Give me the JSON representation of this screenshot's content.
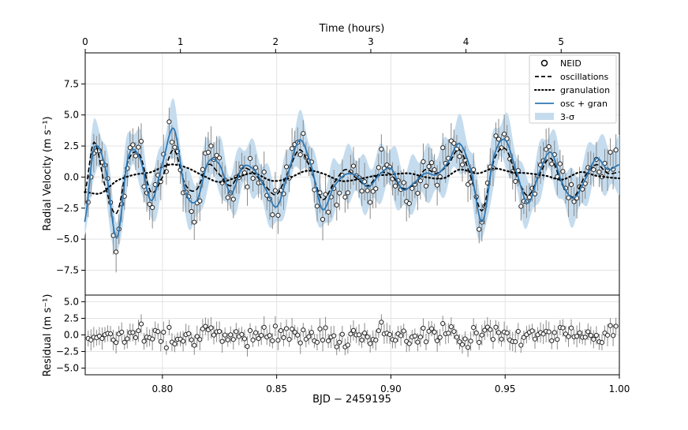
{
  "chart_data": [
    {
      "type": "scatter",
      "panel": "main",
      "top_axis": {
        "label": "Time (hours)",
        "ticks": [
          0,
          1,
          2,
          3,
          4,
          5
        ],
        "tick_labels": [
          "0",
          "1",
          "2",
          "3",
          "4",
          "5"
        ]
      },
      "ylabel": "Radial Velocity (m s⁻¹)",
      "ylim": [
        -9.5,
        10
      ],
      "xlim": [
        0.7662,
        1.0
      ],
      "yticks": [
        -7.5,
        -5.0,
        -2.5,
        0.0,
        2.5,
        5.0,
        7.5
      ],
      "ytick_labels": [
        "−7.5",
        "−5.0",
        "−2.5",
        "0.0",
        "2.5",
        "5.0",
        "7.5"
      ],
      "grid": true,
      "legend": {
        "placement": "top-right",
        "entries": [
          "NEID",
          "oscillations",
          "granulation",
          "osc + gran",
          "3-σ"
        ]
      },
      "series": [
        {
          "name": "NEID",
          "style": "open circles with grey error bars",
          "error": 1.3
        },
        {
          "name": "oscillations",
          "style": "dashed black",
          "x": [
            0.766,
            0.77,
            0.775,
            0.78,
            0.785,
            0.79,
            0.795,
            0.8,
            0.805,
            0.81,
            0.815,
            0.82,
            0.825,
            0.83,
            0.835,
            0.84,
            0.845,
            0.85,
            0.855,
            0.86,
            0.865,
            0.87,
            0.875,
            0.88,
            0.885,
            0.89,
            0.895,
            0.9,
            0.905,
            0.91,
            0.915,
            0.92,
            0.925,
            0.93,
            0.935,
            0.94,
            0.945,
            0.95,
            0.955,
            0.96,
            0.965,
            0.97,
            0.975,
            0.98,
            0.985,
            0.99,
            0.995,
            1.0
          ],
          "y": [
            -1.3,
            2.8,
            -0.8,
            -2.9,
            1.3,
            1.8,
            -1.2,
            0.0,
            2.2,
            -0.6,
            -1.0,
            1.0,
            0.2,
            -0.7,
            0.7,
            0.3,
            -0.7,
            -1.4,
            0.4,
            2.2,
            0.6,
            -1.8,
            -0.5,
            0.6,
            -0.1,
            -0.7,
            0.3,
            0.2,
            -0.9,
            -0.6,
            0.6,
            0.3,
            1.0,
            2.2,
            0.0,
            -2.7,
            1.3,
            2.3,
            0.1,
            -1.5,
            0.2,
            1.5,
            -0.6,
            -1.6,
            0.1,
            1.0,
            0.3,
            0.4
          ]
        },
        {
          "name": "granulation",
          "style": "dotted black",
          "x": [
            0.766,
            0.773,
            0.78,
            0.788,
            0.795,
            0.803,
            0.81,
            0.818,
            0.825,
            0.833,
            0.84,
            0.848,
            0.855,
            0.863,
            0.87,
            0.878,
            0.885,
            0.893,
            0.9,
            0.908,
            0.915,
            0.923,
            0.93,
            0.938,
            0.945,
            0.953,
            0.96,
            0.968,
            0.975,
            0.983,
            0.99,
            1.0
          ],
          "y": [
            -1.2,
            -1.3,
            -0.3,
            0.2,
            0.4,
            1.0,
            0.8,
            0.1,
            -0.4,
            0.0,
            0.3,
            -0.3,
            -0.1,
            0.5,
            0.3,
            -0.3,
            -0.2,
            0.1,
            0.2,
            0.3,
            0.0,
            -0.1,
            0.6,
            0.3,
            0.7,
            0.4,
            0.3,
            0.1,
            -0.2,
            0.4,
            0.1,
            -0.1
          ]
        },
        {
          "name": "osc + gran",
          "style": "solid blue",
          "x": [
            0.766,
            0.77,
            0.775,
            0.78,
            0.785,
            0.79,
            0.795,
            0.8,
            0.805,
            0.81,
            0.815,
            0.82,
            0.825,
            0.83,
            0.835,
            0.84,
            0.845,
            0.85,
            0.855,
            0.86,
            0.865,
            0.87,
            0.875,
            0.88,
            0.885,
            0.89,
            0.895,
            0.9,
            0.905,
            0.91,
            0.915,
            0.92,
            0.925,
            0.93,
            0.935,
            0.94,
            0.945,
            0.95,
            0.955,
            0.96,
            0.965,
            0.97,
            0.975,
            0.98,
            0.985,
            0.99,
            0.995,
            1.0
          ],
          "y": [
            -3.6,
            2.3,
            0.8,
            -4.9,
            1.6,
            1.6,
            -1.9,
            1.1,
            3.9,
            -1.1,
            -1.9,
            1.2,
            1.0,
            -1.3,
            0.8,
            0.6,
            -0.9,
            -2.4,
            0.3,
            3.0,
            1.0,
            -2.6,
            -0.8,
            0.2,
            0.1,
            -0.8,
            0.2,
            0.7,
            -1.0,
            -0.5,
            0.3,
            0.2,
            1.2,
            2.7,
            0.5,
            -3.6,
            1.6,
            3.0,
            0.4,
            -2.1,
            0.4,
            2.0,
            -0.5,
            -1.7,
            -0.2,
            1.5,
            0.6,
            1.0
          ]
        },
        {
          "name": "3-σ",
          "style": "light blue band around osc + gran",
          "halfwidth": 1.8
        }
      ]
    },
    {
      "type": "scatter",
      "panel": "residual",
      "xlabel": "BJD − 2459195",
      "ylabel": "Residual (m s⁻¹)",
      "ylim": [
        -6,
        6
      ],
      "xlim": [
        0.7662,
        1.0
      ],
      "yticks": [
        -5.0,
        -2.5,
        0.0,
        2.5,
        5.0
      ],
      "ytick_labels": [
        "−5.0",
        "−2.5",
        "0.0",
        "2.5",
        "5.0"
      ],
      "xticks": [
        0.8,
        0.85,
        0.9,
        0.95,
        1.0
      ],
      "xtick_labels": [
        "0.80",
        "0.85",
        "0.90",
        "0.95",
        "1.00"
      ],
      "grid": true,
      "series": [
        {
          "name": "Residual",
          "style": "open circles with grey error bars",
          "error": 1.3
        }
      ]
    }
  ]
}
